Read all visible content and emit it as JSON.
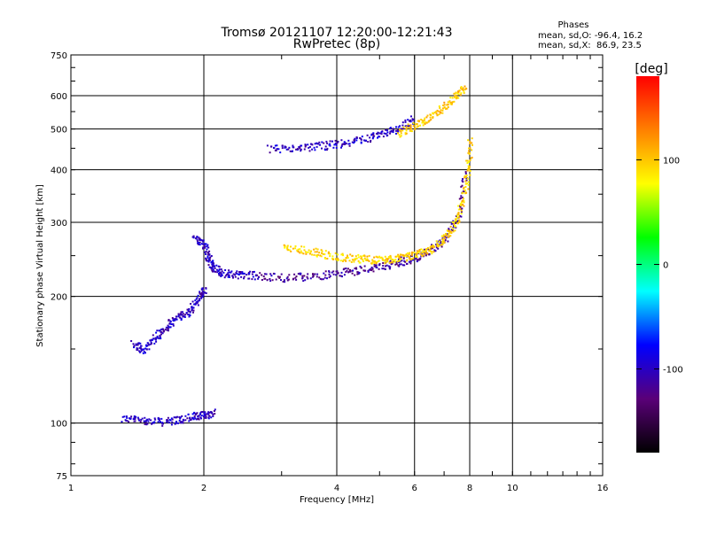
{
  "chart_data": {
    "type": "scatter",
    "title": "Tromsø 20121107 12:20:00-12:21:43",
    "subtitle": "RwPretec (8p)",
    "stats": {
      "heading": "Phases",
      "line1": "mean, sd,O: -96.4, 16.2",
      "line2": "mean, sd,X:  86.9, 23.5"
    },
    "xlabel": "Frequency [MHz]",
    "ylabel": "Stationary phase Virtual Height [km]",
    "x_scale": "log",
    "y_scale": "log",
    "xlim": [
      1,
      16
    ],
    "ylim": [
      75,
      750
    ],
    "x_ticks": [
      {
        "value": 1,
        "label": "1"
      },
      {
        "value": 2,
        "label": "2"
      },
      {
        "value": 4,
        "label": "4"
      },
      {
        "value": 6,
        "label": "6"
      },
      {
        "value": 8,
        "label": "8"
      },
      {
        "value": 10,
        "label": "10"
      },
      {
        "value": 16,
        "label": "16"
      }
    ],
    "y_ticks": [
      {
        "value": 75,
        "label": "75"
      },
      {
        "value": 100,
        "label": "100"
      },
      {
        "value": 200,
        "label": "200"
      },
      {
        "value": 300,
        "label": "300"
      },
      {
        "value": 400,
        "label": "400"
      },
      {
        "value": 500,
        "label": "500"
      },
      {
        "value": 600,
        "label": "600"
      },
      {
        "value": 750,
        "label": "750"
      }
    ],
    "grid": true,
    "colorbar": {
      "label": "[deg]",
      "range": [
        -180,
        180
      ],
      "ticks": [
        {
          "value": 100,
          "label": "100"
        },
        {
          "value": 0,
          "label": "0"
        },
        {
          "value": -100,
          "label": "-100"
        }
      ],
      "palette": [
        "#000000",
        "#5a0078",
        "#0000ff",
        "#00ffff",
        "#00ff00",
        "#ffff00",
        "#ff8000",
        "#ff0000"
      ]
    },
    "traces": [
      {
        "x": [
          1.3,
          1.45,
          1.6,
          1.75,
          1.9,
          2.0,
          2.1
        ],
        "y": [
          103,
          102,
          101,
          102,
          104,
          105,
          106
        ],
        "phase": -100
      },
      {
        "x": [
          1.38,
          1.45,
          1.55,
          1.65,
          1.75,
          1.85,
          1.95,
          2.0
        ],
        "y": [
          155,
          150,
          160,
          170,
          180,
          185,
          200,
          210
        ],
        "phase": -100
      },
      {
        "x": [
          1.9,
          2.0,
          2.05,
          2.1,
          2.2,
          2.4,
          2.6
        ],
        "y": [
          280,
          265,
          245,
          235,
          228,
          226,
          225
        ],
        "phase": -100
      },
      {
        "x": [
          2.6,
          3.0,
          3.5,
          4.0,
          4.5,
          5.0,
          5.5,
          6.0,
          6.5,
          7.0,
          7.5,
          7.8
        ],
        "y": [
          225,
          222,
          224,
          228,
          232,
          236,
          242,
          248,
          258,
          275,
          310,
          400
        ],
        "phase": -115
      },
      {
        "x": [
          3.0,
          3.4,
          3.8,
          4.2,
          4.6,
          5.0,
          5.4,
          5.8,
          6.2,
          6.6,
          7.0,
          7.4,
          7.7,
          7.9,
          8.0
        ],
        "y": [
          265,
          258,
          252,
          248,
          246,
          245,
          247,
          250,
          255,
          262,
          275,
          300,
          340,
          400,
          470
        ],
        "phase": 95
      },
      {
        "x": [
          2.8,
          3.2,
          3.6,
          4.0,
          4.5,
          5.0,
          5.5,
          6.0
        ],
        "y": [
          450,
          452,
          456,
          462,
          472,
          485,
          505,
          530
        ],
        "phase": -100
      },
      {
        "x": [
          5.5,
          6.0,
          6.5,
          7.0,
          7.4,
          7.8
        ],
        "y": [
          490,
          510,
          535,
          565,
          600,
          630
        ],
        "phase": 100
      }
    ]
  }
}
